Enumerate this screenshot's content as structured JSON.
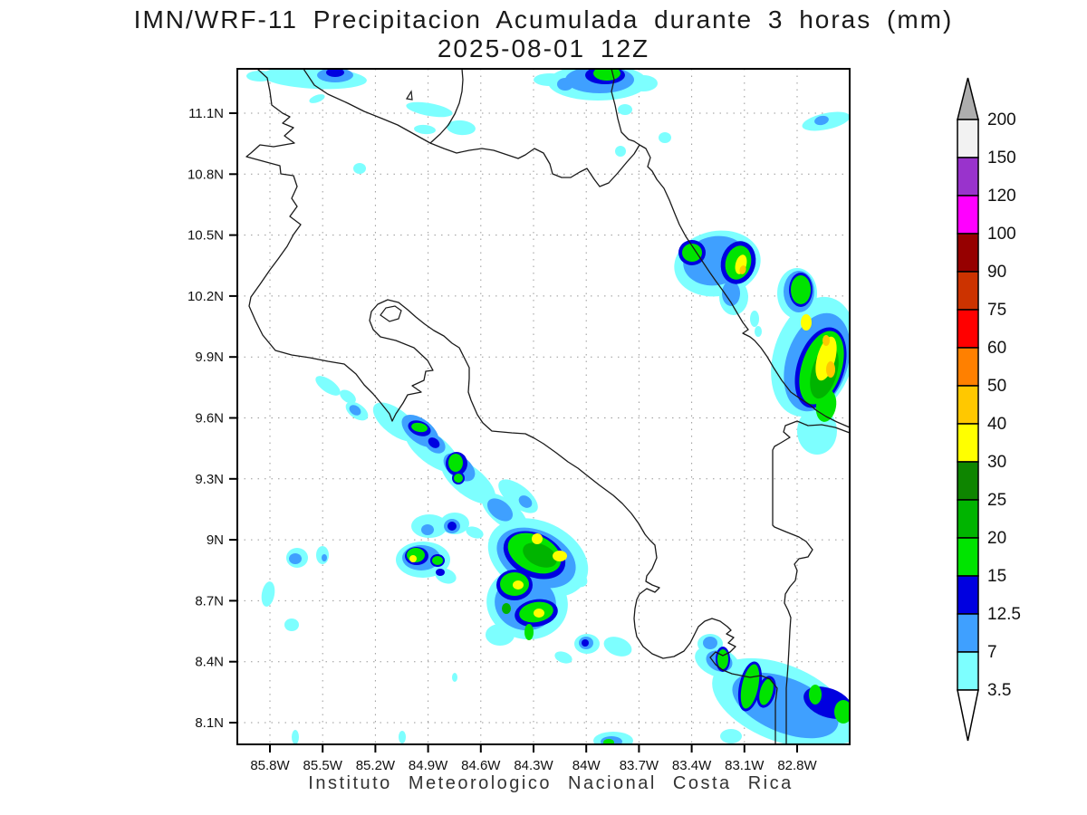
{
  "title": {
    "line1": "IMN/WRF-11 Precipitacion Acumulada durante 3 horas (mm)",
    "line2": "2025-08-01 12Z"
  },
  "footer": "Instituto Meteorologico Nacional Costa Rica",
  "axes": {
    "y_ticks": [
      "11.1N",
      "10.8N",
      "10.5N",
      "10.2N",
      "9.9N",
      "9.6N",
      "9.3N",
      "9N",
      "8.7N",
      "8.4N",
      "8.1N"
    ],
    "x_ticks": [
      "85.8W",
      "85.5W",
      "85.2W",
      "84.9W",
      "84.6W",
      "84.3W",
      "84W",
      "83.7W",
      "83.4W",
      "83.1W",
      "82.8W"
    ]
  },
  "colorbar": {
    "labels": [
      "200",
      "150",
      "120",
      "100",
      "90",
      "75",
      "60",
      "50",
      "40",
      "30",
      "25",
      "20",
      "15",
      "12.5",
      "7",
      "3.5"
    ],
    "segment_colors_top_to_bottom": [
      "#F2F2F2",
      "#9933CC",
      "#FF00FF",
      "#960000",
      "#CC3300",
      "#FF0000",
      "#FF8000",
      "#FFC800",
      "#FFFF00",
      "#0E8500",
      "#00B400",
      "#00E400",
      "#0000E0",
      "#3FA0FF",
      "#7DFFFF"
    ],
    "over_arrow_color": "#ADADAD",
    "under_arrow_color": "#FFFFFF"
  },
  "chart_data": {
    "type": "heatmap",
    "subtype": "filled-contour precipitation map over Costa Rica",
    "title": "IMN/WRF-11 Precipitacion Acumulada durante 3 horas (mm) 2025-08-01 12Z",
    "xlabel_ticks": [
      "85.8W",
      "85.5W",
      "85.2W",
      "84.9W",
      "84.6W",
      "84.3W",
      "84W",
      "83.7W",
      "83.4W",
      "83.1W",
      "82.8W"
    ],
    "ylabel_ticks": [
      "11.1N",
      "10.8N",
      "10.5N",
      "10.2N",
      "9.9N",
      "9.6N",
      "9.3N",
      "9N",
      "8.7N",
      "8.4N",
      "8.1N"
    ],
    "grid": "dotted",
    "legend_position": "right colorbar",
    "levels_mm": [
      3.5,
      7,
      12.5,
      15,
      20,
      25,
      30,
      40,
      50,
      60,
      75,
      90,
      100,
      120,
      150,
      200
    ],
    "level_colors": {
      "3.5": "#7DFFFF",
      "7": "#3FA0FF",
      "12.5": "#0000E0",
      "15": "#00E400",
      "20": "#00B400",
      "25": "#0E8500",
      "30": "#FFFF00",
      "40": "#FFC800",
      "50": "#FF8000",
      "60": "#FF0000",
      "75": "#CC3300",
      "90": "#960000",
      "100": "#FF00FF",
      "120": "#9933CC",
      "150": "#F2F2F2"
    },
    "cell_format": "[level_mm, cx_px, cy_px, rx_px, ry_px, rotation_deg] in plot-area pixels (676x746)",
    "cells": [
      [
        3.5,
        85,
        10,
        58,
        12,
        3
      ],
      [
        3.5,
        25,
        8,
        15,
        6,
        0
      ],
      [
        3.5,
        88,
        33,
        9,
        4,
        -20
      ],
      [
        7,
        108,
        7,
        20,
        8,
        0
      ],
      [
        12.5,
        108,
        4,
        10,
        5,
        0
      ],
      [
        3.5,
        212,
        45,
        26,
        7,
        10
      ],
      [
        3.5,
        207,
        67,
        12,
        5,
        5
      ],
      [
        3.5,
        247,
        65,
        16,
        8,
        5
      ],
      [
        3.5,
        135,
        110,
        7,
        6,
        0
      ],
      [
        3.5,
        398,
        15,
        55,
        20,
        0
      ],
      [
        3.5,
        345,
        12,
        18,
        7,
        0
      ],
      [
        3.5,
        448,
        16,
        16,
        9,
        0
      ],
      [
        7,
        400,
        12,
        38,
        15,
        0
      ],
      [
        7,
        362,
        17,
        9,
        7,
        0
      ],
      [
        12.5,
        406,
        7,
        22,
        10,
        0
      ],
      [
        15,
        408,
        5,
        15,
        8,
        0
      ],
      [
        3.5,
        428,
        45,
        8,
        6,
        0
      ],
      [
        3.5,
        472,
        76,
        7,
        6,
        0
      ],
      [
        3.5,
        423,
        91,
        6,
        6,
        0
      ],
      [
        3.5,
        650,
        58,
        27,
        9,
        -12
      ],
      [
        7,
        645,
        57,
        8,
        5,
        -12
      ],
      [
        3.5,
        530,
        215,
        48,
        36,
        -10
      ],
      [
        3.5,
        548,
        252,
        16,
        20,
        0
      ],
      [
        7,
        528,
        212,
        36,
        27,
        -10
      ],
      [
        7,
        545,
        248,
        10,
        14,
        0
      ],
      [
        12.5,
        502,
        203,
        15,
        14,
        0
      ],
      [
        15,
        502,
        203,
        11,
        10,
        0
      ],
      [
        12.5,
        553,
        214,
        19,
        24,
        15
      ],
      [
        15,
        553,
        214,
        14,
        19,
        15
      ],
      [
        30,
        556,
        216,
        6,
        11,
        15
      ],
      [
        40,
        558,
        222,
        3.5,
        5,
        15
      ],
      [
        3.5,
        571,
        276,
        5,
        9,
        0
      ],
      [
        3.5,
        575,
        290,
        4,
        6,
        0
      ],
      [
        3.5,
        636,
        318,
        44,
        68,
        18
      ],
      [
        3.5,
        640,
        400,
        22,
        26,
        0
      ],
      [
        3.5,
        618,
        248,
        22,
        28,
        0
      ],
      [
        7,
        640,
        324,
        34,
        56,
        18
      ],
      [
        7,
        620,
        246,
        17,
        23,
        0
      ],
      [
        12.5,
        644,
        330,
        26,
        46,
        18
      ],
      [
        12.5,
        622,
        244,
        13,
        19,
        0
      ],
      [
        15,
        645,
        330,
        22,
        42,
        18
      ],
      [
        15,
        622,
        244,
        11,
        16,
        0
      ],
      [
        20,
        648,
        335,
        14,
        30,
        16
      ],
      [
        30,
        628,
        280,
        6,
        9,
        0
      ],
      [
        30,
        650,
        320,
        10,
        25,
        15
      ],
      [
        40,
        650,
        300,
        4,
        6,
        0
      ],
      [
        40,
        655,
        332,
        5,
        9,
        0
      ],
      [
        15,
        650,
        372,
        11,
        18,
        10
      ],
      [
        3.5,
        100,
        350,
        16,
        7,
        35
      ],
      [
        3.5,
        122,
        362,
        10,
        6,
        35
      ],
      [
        3.5,
        132,
        378,
        14,
        8,
        35
      ],
      [
        7,
        130,
        377,
        7,
        5,
        35
      ],
      [
        3.5,
        175,
        390,
        30,
        14,
        38
      ],
      [
        3.5,
        215,
        420,
        36,
        16,
        38
      ],
      [
        3.5,
        255,
        455,
        36,
        16,
        38
      ],
      [
        3.5,
        295,
        490,
        30,
        14,
        38
      ],
      [
        3.5,
        310,
        472,
        26,
        12,
        38
      ],
      [
        7,
        202,
        400,
        24,
        13,
        38
      ],
      [
        12.5,
        201,
        397,
        13,
        8,
        20
      ],
      [
        15,
        201,
        396,
        9,
        5,
        10
      ],
      [
        7,
        218,
        414,
        13,
        9,
        38
      ],
      [
        12.5,
        217,
        413,
        7,
        5,
        38
      ],
      [
        7,
        245,
        440,
        20,
        12,
        38
      ],
      [
        12.5,
        242,
        436,
        12,
        13,
        0
      ],
      [
        15,
        241,
        435,
        8,
        10,
        0
      ],
      [
        12.5,
        244,
        452,
        7,
        7,
        0
      ],
      [
        15,
        244,
        452,
        5,
        5,
        0
      ],
      [
        7,
        290,
        487,
        16,
        10,
        38
      ],
      [
        7,
        318,
        478,
        8,
        6,
        38
      ],
      [
        3.5,
        212,
        505,
        20,
        13,
        0
      ],
      [
        3.5,
        240,
        502,
        16,
        12,
        0
      ],
      [
        3.5,
        262,
        512,
        10,
        6,
        20
      ],
      [
        7,
        210,
        509,
        7,
        6,
        0
      ],
      [
        7,
        237,
        505,
        9,
        8,
        0
      ],
      [
        12.5,
        237,
        505,
        5,
        5,
        0
      ],
      [
        3.5,
        66,
        540,
        12,
        11,
        0
      ],
      [
        3.5,
        94,
        537,
        7,
        10,
        0
      ],
      [
        7,
        64,
        541,
        7,
        6,
        0
      ],
      [
        7,
        96,
        540,
        3,
        4,
        0
      ],
      [
        3.5,
        205,
        542,
        30,
        20,
        0
      ],
      [
        3.5,
        230,
        560,
        12,
        8,
        20
      ],
      [
        7,
        203,
        540,
        21,
        14,
        0
      ],
      [
        12.5,
        198,
        538,
        13,
        10,
        0
      ],
      [
        15,
        197,
        537,
        10,
        8,
        0
      ],
      [
        30,
        194,
        541,
        4,
        4,
        0
      ],
      [
        12.5,
        221,
        543,
        8,
        7,
        0
      ],
      [
        15,
        221,
        543,
        6,
        5,
        0
      ],
      [
        12.5,
        224,
        556,
        5,
        4,
        0
      ],
      [
        3.5,
        332,
        540,
        58,
        40,
        25
      ],
      [
        3.5,
        320,
        590,
        45,
        40,
        10
      ],
      [
        3.5,
        370,
        560,
        18,
        10,
        30
      ],
      [
        3.5,
        290,
        625,
        16,
        12,
        0
      ],
      [
        7,
        330,
        540,
        46,
        30,
        25
      ],
      [
        7,
        318,
        590,
        34,
        30,
        10
      ],
      [
        12.5,
        328,
        537,
        36,
        24,
        25
      ],
      [
        15,
        328,
        535,
        31,
        20,
        25
      ],
      [
        20,
        334,
        537,
        20,
        12,
        25
      ],
      [
        30,
        331,
        519,
        6,
        6,
        0
      ],
      [
        30,
        356,
        538,
        8,
        6,
        0
      ],
      [
        12.5,
        306,
        570,
        20,
        17,
        0
      ],
      [
        15,
        306,
        569,
        16,
        13,
        0
      ],
      [
        30,
        310,
        570,
        6,
        5,
        0
      ],
      [
        12.5,
        330,
        601,
        24,
        15,
        -10
      ],
      [
        15,
        330,
        600,
        19,
        11,
        -10
      ],
      [
        30,
        333,
        601,
        6,
        5,
        0
      ],
      [
        15,
        322,
        622,
        5,
        9,
        0
      ],
      [
        20,
        297,
        596,
        5,
        6,
        0
      ],
      [
        3.5,
        386,
        635,
        14,
        11,
        0
      ],
      [
        7,
        385,
        634,
        8,
        7,
        0
      ],
      [
        12.5,
        384,
        634,
        4,
        4,
        0
      ],
      [
        3.5,
        420,
        638,
        16,
        10,
        20
      ],
      [
        3.5,
        360,
        650,
        10,
        6,
        20
      ],
      [
        3.5,
        34,
        580,
        7,
        14,
        10
      ],
      [
        3.5,
        60,
        614,
        8,
        7,
        0
      ],
      [
        3.5,
        64,
        738,
        4,
        8,
        0
      ],
      [
        3.5,
        240,
        672,
        3,
        5,
        0
      ],
      [
        3.5,
        182,
        738,
        4,
        7,
        0
      ],
      [
        3.5,
        600,
        700,
        80,
        42,
        22
      ],
      [
        3.5,
        530,
        655,
        26,
        16,
        22
      ],
      [
        3.5,
        660,
        725,
        30,
        20,
        10
      ],
      [
        3.5,
        545,
        737,
        12,
        8,
        0
      ],
      [
        3.5,
        522,
        635,
        14,
        11,
        0
      ],
      [
        7,
        605,
        703,
        62,
        30,
        22
      ],
      [
        7,
        532,
        654,
        15,
        11,
        22
      ],
      [
        7,
        522,
        634,
        8,
        7,
        0
      ],
      [
        12.5,
        536,
        652,
        8,
        14,
        0
      ],
      [
        15,
        536,
        652,
        6,
        11,
        0
      ],
      [
        12.5,
        566,
        682,
        12,
        28,
        12
      ],
      [
        15,
        566,
        682,
        9,
        25,
        12
      ],
      [
        12.5,
        584,
        688,
        10,
        18,
        15
      ],
      [
        15,
        584,
        688,
        7,
        15,
        15
      ],
      [
        12.5,
        652,
        700,
        28,
        16,
        20
      ],
      [
        15,
        638,
        691,
        7,
        11,
        0
      ],
      [
        15,
        669,
        710,
        10,
        13,
        0
      ],
      [
        3.5,
        415,
        742,
        22,
        10,
        0
      ],
      [
        7,
        413,
        743,
        12,
        6,
        0
      ],
      [
        15,
        410,
        744,
        6,
        4,
        0
      ]
    ]
  }
}
